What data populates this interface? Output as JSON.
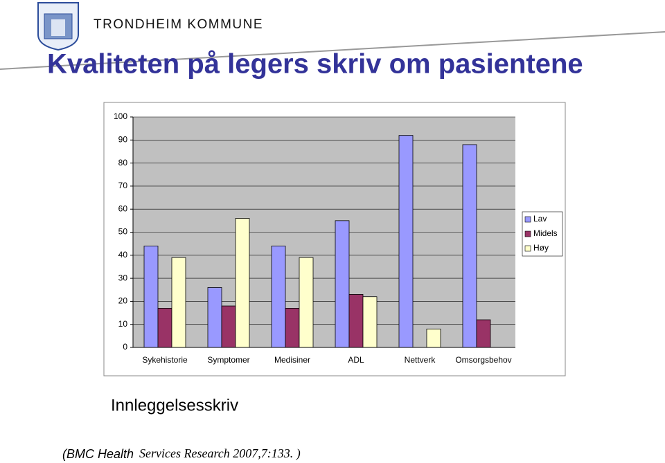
{
  "header": {
    "org": "TRONDHEIM KOMMUNE"
  },
  "title": "Kvaliteten på legers skriv om pasientene",
  "chart_data": {
    "type": "bar",
    "categories": [
      "Sykehistorie",
      "Symptomer",
      "Medisiner",
      "ADL",
      "Nettverk",
      "Omsorgsbehov"
    ],
    "series": [
      {
        "name": "Lav",
        "color": "#9999ff",
        "values": [
          44,
          26,
          44,
          55,
          92,
          88
        ]
      },
      {
        "name": "Midels",
        "color": "#993366",
        "values": [
          17,
          18,
          17,
          23,
          0,
          12
        ]
      },
      {
        "name": "Høy",
        "color": "#ffffcc",
        "values": [
          39,
          56,
          39,
          22,
          8,
          0
        ]
      }
    ],
    "ylim": [
      0,
      100
    ],
    "yticks": [
      0,
      10,
      20,
      30,
      40,
      50,
      60,
      70,
      80,
      90,
      100
    ],
    "grid": true,
    "legend": "right"
  },
  "subtitle": "Innleggelsesskriv",
  "citation": {
    "part1": "(BMC Health",
    "part2": "Services Research 2007,7:133. )"
  }
}
